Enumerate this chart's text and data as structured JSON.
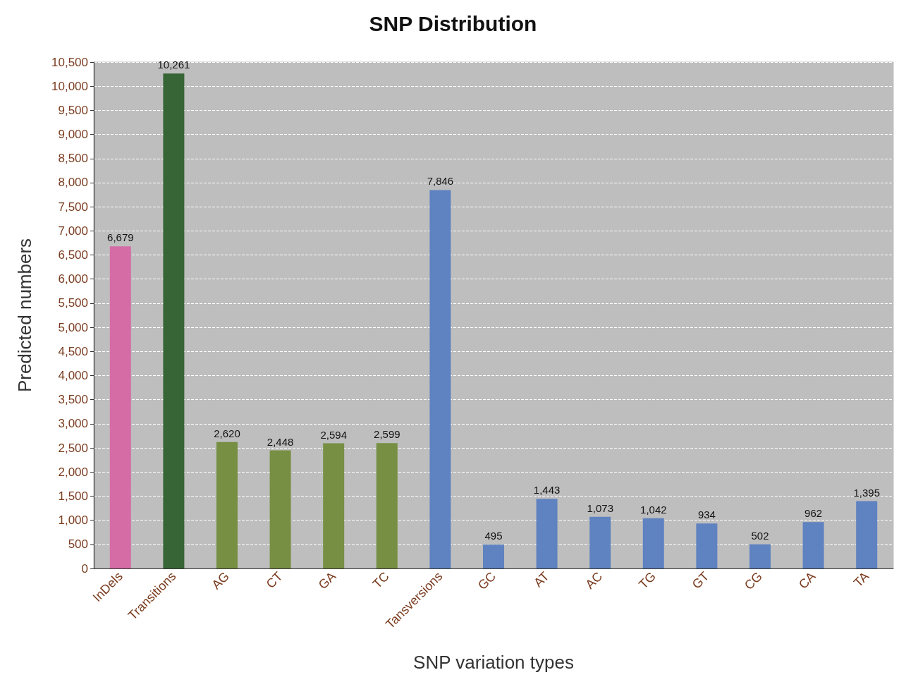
{
  "chart_data": {
    "type": "bar",
    "title": "SNP Distribution",
    "xlabel": "SNP variation types",
    "ylabel": "Predicted numbers",
    "categories": [
      "InDels",
      "Transitions",
      "AG",
      "CT",
      "GA",
      "TC",
      "Tansversions",
      "GC",
      "AT",
      "AC",
      "TG",
      "GT",
      "CG",
      "CA",
      "TA"
    ],
    "values": [
      6679,
      10261,
      2620,
      2448,
      2594,
      2599,
      7846,
      495,
      1443,
      1073,
      1042,
      934,
      502,
      962,
      1395
    ],
    "value_labels": [
      "6,679",
      "10,261",
      "2,620",
      "2,448",
      "2,594",
      "2,599",
      "7,846",
      "495",
      "1,443",
      "1,073",
      "1,042",
      "934",
      "502",
      "962",
      "1,395"
    ],
    "colors": [
      "#d56ca6",
      "#376536",
      "#768f42",
      "#768f42",
      "#768f42",
      "#768f42",
      "#5f82c0",
      "#5f82c0",
      "#5f82c0",
      "#5f82c0",
      "#5f82c0",
      "#5f82c0",
      "#5f82c0",
      "#5f82c0",
      "#5f82c0"
    ],
    "ylim": [
      0,
      10500
    ],
    "yticks": [
      0,
      500,
      {
        "value": 1000,
        "label": "1,000"
      },
      {
        "value": 1500,
        "label": "1,500"
      },
      {
        "value": 2000,
        "label": "2,000"
      },
      {
        "value": 2500,
        "label": "2,500"
      },
      {
        "value": 3000,
        "label": "3,000"
      },
      {
        "value": 3500,
        "label": "3,500"
      },
      {
        "value": 4000,
        "label": "4,000"
      },
      {
        "value": 4500,
        "label": "4,500"
      },
      {
        "value": 5000,
        "label": "5,000"
      },
      {
        "value": 5500,
        "label": "5,500"
      },
      {
        "value": 6000,
        "label": "6,000"
      },
      {
        "value": 6500,
        "label": "6,500"
      },
      {
        "value": 7000,
        "label": "7,000"
      },
      {
        "value": 7500,
        "label": "7,500"
      },
      {
        "value": 8000,
        "label": "8,000"
      },
      {
        "value": 8500,
        "label": "8,500"
      },
      {
        "value": 9000,
        "label": "9,000"
      },
      {
        "value": 9500,
        "label": "9,500"
      },
      {
        "value": 10000,
        "label": "10,000"
      },
      {
        "value": 10500,
        "label": "10,500"
      }
    ],
    "grid": "y"
  }
}
